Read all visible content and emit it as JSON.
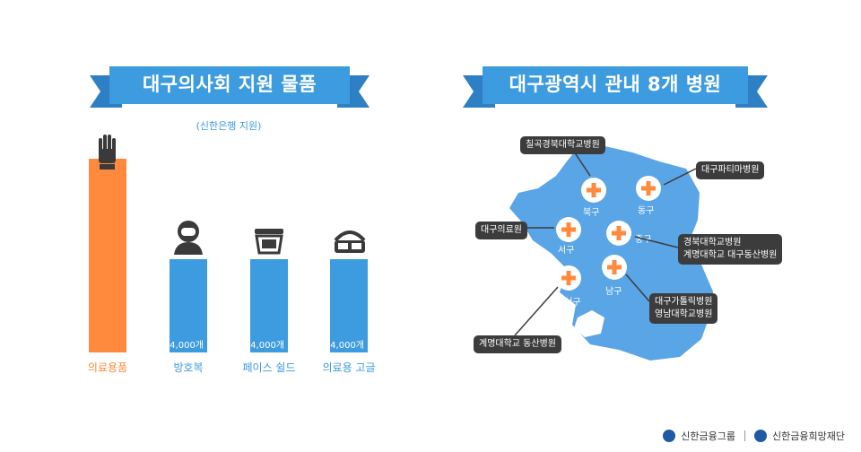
{
  "left_panel": {
    "title": "대구의사회 지원 물품",
    "subtitle": "(신한은행 지원)"
  },
  "right_panel": {
    "title": "대구광역시 관내 8개 병원"
  },
  "chart_data": {
    "type": "bar",
    "categories": [
      "의료용품",
      "방호복",
      "페이스 쉴드",
      "의료용 고글"
    ],
    "data_labels": [
      "",
      "4,000개",
      "4,000개",
      "4,000개"
    ],
    "relative_bar_height": [
      2.08,
      1.0,
      1.0,
      1.0
    ],
    "category_icons": [
      "glove-icon",
      "hazmat-suit-icon",
      "face-shield-icon",
      "goggles-icon"
    ],
    "colors": [
      "#ff8a3d",
      "#3d9be0",
      "#3d9be0",
      "#3d9be0"
    ],
    "title": "",
    "xlabel": "",
    "ylabel": ""
  },
  "map": {
    "districts": [
      "북구",
      "동구",
      "서구",
      "중구",
      "달서구",
      "남구"
    ],
    "hospital_callouts": [
      [
        "칠곡경북대학교병원"
      ],
      [
        "대구파티마병원"
      ],
      [
        "대구의료원"
      ],
      [
        "경북대학교병원",
        "계명대학교 대구동산병원"
      ],
      [
        "대구가톨릭병원",
        "영남대학교병원"
      ],
      [
        "계명대학교 동산병원"
      ]
    ],
    "map_color": "#5aa5e6",
    "marker_color": "#ff8a3d"
  },
  "footer": {
    "logo1_text": "신한금융그룹",
    "logo2_text": "신한금융희망재단"
  }
}
